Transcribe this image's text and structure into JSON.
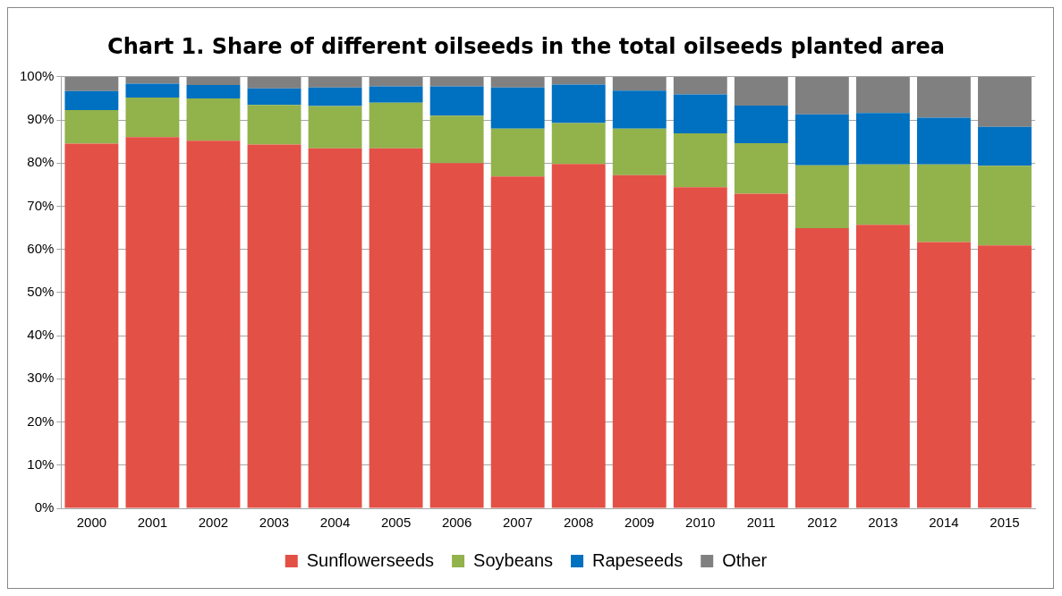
{
  "chart_data": {
    "type": "bar",
    "title": "Chart 1. Share of different oilseeds in the total oilseeds planted area",
    "categories": [
      "2000",
      "2001",
      "2002",
      "2003",
      "2004",
      "2005",
      "2006",
      "2007",
      "2008",
      "2009",
      "2010",
      "2011",
      "2012",
      "2013",
      "2014",
      "2015"
    ],
    "stacked": true,
    "series": [
      {
        "name": "Sunflowerseeds",
        "color": "#e35045",
        "values": [
          84.5,
          86,
          85.2,
          84.3,
          83.4,
          83.4,
          80,
          76.9,
          79.8,
          77.2,
          74.4,
          72.9,
          64.9,
          65.7,
          61.7,
          60.9
        ]
      },
      {
        "name": "Soybeans",
        "color": "#92b24b",
        "values": [
          7.8,
          9.2,
          9.8,
          9.2,
          9.8,
          10.6,
          11,
          11.1,
          9.5,
          10.8,
          12.5,
          11.7,
          14.6,
          14,
          18,
          18.5
        ]
      },
      {
        "name": "Rapeseeds",
        "color": "#0070c0",
        "values": [
          4.4,
          3.2,
          3.1,
          3.8,
          4.3,
          3.8,
          6.8,
          9.5,
          8.9,
          8.8,
          9,
          8.7,
          11.8,
          11.9,
          10.8,
          9
        ]
      },
      {
        "name": "Other",
        "color": "#808080",
        "values": [
          3.3,
          1.6,
          1.9,
          2.7,
          2.5,
          2.2,
          2.2,
          2.5,
          1.8,
          3.2,
          4.1,
          6.7,
          8.7,
          8.4,
          9.5,
          11.6
        ]
      }
    ],
    "ylim": [
      0,
      100
    ],
    "yticks": [
      {
        "value": 0,
        "label": "0%"
      },
      {
        "value": 10,
        "label": "10%"
      },
      {
        "value": 20,
        "label": "20%"
      },
      {
        "value": 30,
        "label": "30%"
      },
      {
        "value": 40,
        "label": "40%"
      },
      {
        "value": 50,
        "label": "50%"
      },
      {
        "value": 60,
        "label": "60%"
      },
      {
        "value": 70,
        "label": "70%"
      },
      {
        "value": 80,
        "label": "80%"
      },
      {
        "value": 90,
        "label": "90%"
      },
      {
        "value": 100,
        "label": "100%"
      }
    ],
    "grid": "y",
    "legend": "bottom"
  }
}
